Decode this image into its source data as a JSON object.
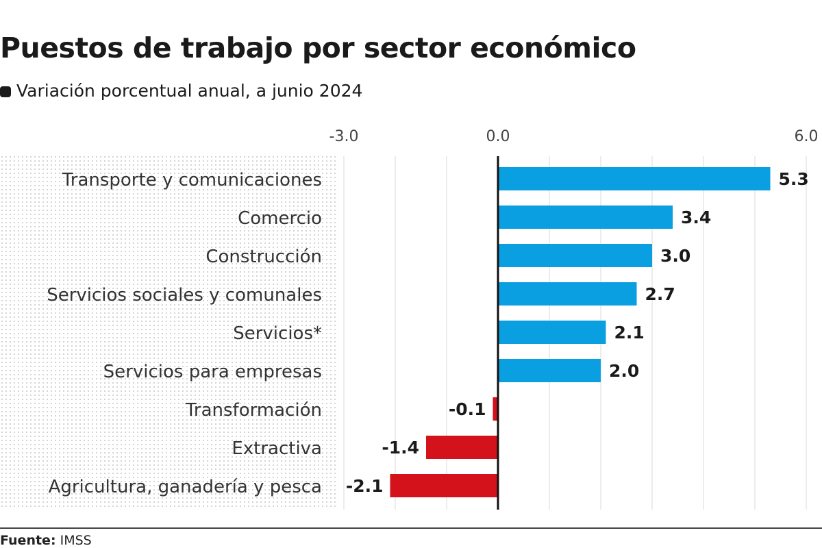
{
  "title": "Puestos de trabajo por sector económico",
  "subtitle": "Variación porcentual anual, a junio 2024",
  "source_label": "Fuente:",
  "source_value": "IMSS",
  "chart_data": {
    "type": "bar",
    "orientation": "horizontal",
    "categories": [
      "Transporte y comunicaciones",
      "Comercio",
      "Construcción",
      "Servicios sociales y comunales",
      "Servicios*",
      "Servicios para empresas",
      "Transformación",
      "Extractiva",
      "Agricultura, ganadería y pesca"
    ],
    "values": [
      5.3,
      3.4,
      3.0,
      2.7,
      2.1,
      2.0,
      -0.1,
      -1.4,
      -2.1
    ],
    "xlim": [
      -3.0,
      6.0
    ],
    "xticks": [
      "-3.0",
      "0.0",
      "6.0"
    ],
    "xtick_values": [
      -3,
      0,
      6
    ],
    "grid": true,
    "colors": {
      "positive": "#0a9fe0",
      "negative": "#d3121b"
    }
  }
}
